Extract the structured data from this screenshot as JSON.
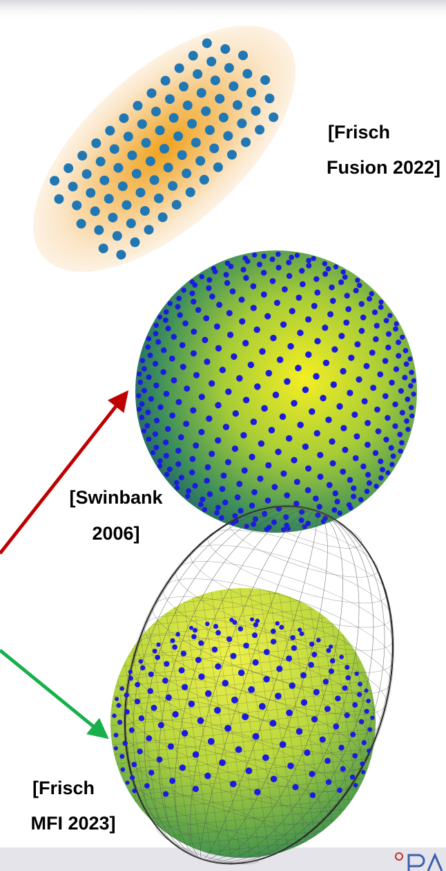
{
  "annotations": [
    {
      "lines": [
        "[Frisch",
        "Fusion 2022]"
      ]
    },
    {
      "lines": [
        "[Swinbank",
        "2006]"
      ]
    },
    {
      "lines": [
        "[Frisch",
        "MFI 2023]"
      ]
    }
  ]
}
